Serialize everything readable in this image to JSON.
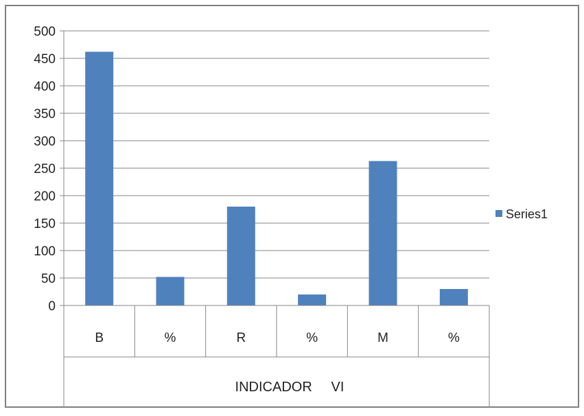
{
  "chart_data": {
    "type": "bar",
    "categories": [
      "B",
      "%",
      "R",
      "%",
      "M",
      "%"
    ],
    "group_label": "INDICADOR     VI",
    "series": [
      {
        "name": "Series1",
        "values": [
          462,
          52,
          180,
          20,
          263,
          30
        ]
      }
    ],
    "ylim": [
      0,
      500
    ],
    "yticks": [
      "0",
      "50",
      "100",
      "150",
      "200",
      "250",
      "300",
      "350",
      "400",
      "450",
      "500"
    ],
    "grid": true,
    "legend_position": "right",
    "colors": {
      "bar": "#4F81BD",
      "grid": "#868686",
      "axis": "#868686",
      "border": "#7F7F7F"
    }
  }
}
